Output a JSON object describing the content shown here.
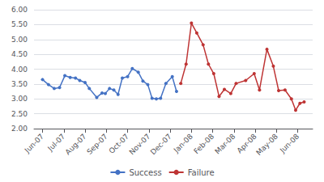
{
  "chart_data": {
    "type": "line",
    "series": [
      {
        "name": "Success",
        "color": "#4472C4",
        "marker": "circle",
        "x": [
          0,
          0.28,
          0.55,
          0.8,
          1.05,
          1.3,
          1.55,
          1.75,
          2.0,
          2.2,
          2.55,
          2.8,
          2.95,
          3.15,
          3.35,
          3.55,
          3.75,
          4.0,
          4.22,
          4.5,
          4.72,
          4.95,
          5.15,
          5.35,
          5.55,
          5.8,
          6.1,
          6.3
        ],
        "values": [
          3.65,
          3.48,
          3.35,
          3.38,
          3.78,
          3.72,
          3.7,
          3.62,
          3.55,
          3.35,
          3.05,
          3.2,
          3.18,
          3.35,
          3.3,
          3.15,
          3.7,
          3.75,
          4.02,
          3.9,
          3.6,
          3.48,
          3.02,
          3.0,
          3.02,
          3.52,
          3.75,
          3.25
        ]
      },
      {
        "name": "Failure",
        "color": "#BE3434",
        "marker": "circle",
        "x": [
          6.5,
          6.75,
          7.0,
          7.25,
          7.55,
          7.8,
          8.05,
          8.3,
          8.55,
          8.85,
          9.1,
          9.55,
          9.95,
          10.2,
          10.55,
          10.85,
          11.1,
          11.4,
          11.7,
          11.9,
          12.1,
          12.3
        ],
        "values": [
          3.52,
          4.17,
          5.55,
          5.22,
          4.82,
          4.17,
          3.85,
          3.08,
          3.32,
          3.18,
          3.52,
          3.62,
          3.85,
          3.3,
          4.67,
          4.1,
          3.28,
          3.3,
          3.0,
          2.62,
          2.85,
          2.9
        ]
      }
    ],
    "xlim": [
      -0.4,
      12.7
    ],
    "xticks": [
      {
        "value": 0,
        "label": "Jun-07"
      },
      {
        "value": 1,
        "label": "Jul-07"
      },
      {
        "value": 2,
        "label": "Aug-07"
      },
      {
        "value": 3,
        "label": "Sep-07"
      },
      {
        "value": 4,
        "label": "Oct-07"
      },
      {
        "value": 5,
        "label": "Nov-07"
      },
      {
        "value": 6,
        "label": "Dec-07"
      },
      {
        "value": 7,
        "label": "Jan-08"
      },
      {
        "value": 8,
        "label": "Feb-08"
      },
      {
        "value": 9,
        "label": "Mar-08"
      },
      {
        "value": 10,
        "label": "Apr-08"
      },
      {
        "value": 11,
        "label": "May-08"
      },
      {
        "value": 12,
        "label": "Jun-08"
      }
    ],
    "ylim": [
      2.0,
      6.0
    ],
    "yticks": [
      {
        "value": 2.0,
        "label": "2.00"
      },
      {
        "value": 2.5,
        "label": "2.50"
      },
      {
        "value": 3.0,
        "label": "3.00"
      },
      {
        "value": 3.5,
        "label": "3.50"
      },
      {
        "value": 4.0,
        "label": "4.00"
      },
      {
        "value": 4.5,
        "label": "4.50"
      },
      {
        "value": 5.0,
        "label": "5.00"
      },
      {
        "value": 5.5,
        "label": "5.50"
      },
      {
        "value": 6.0,
        "label": "6.00"
      }
    ],
    "grid": "y",
    "legend": "bottom"
  }
}
